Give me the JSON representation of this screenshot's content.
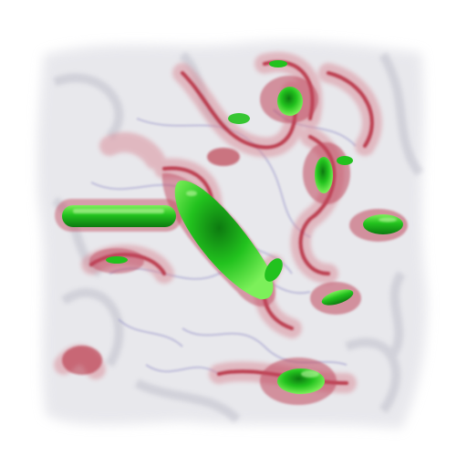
{
  "scene": {
    "subject": "volume-rendered-turbulent-vortex-field",
    "background_color": "#ffffff",
    "colors": {
      "haze_gray": "#c9c9d4",
      "haze_purple": "#8a86c4",
      "shell_red": "#b0172a",
      "shell_pink": "#d98a96",
      "core_green": "#22c21e",
      "core_green_dark": "#0d7a10",
      "core_green_light": "#7cf05a"
    },
    "layers": [
      "gray-haze",
      "purple-wisps",
      "red-tubes",
      "green-cores"
    ]
  }
}
